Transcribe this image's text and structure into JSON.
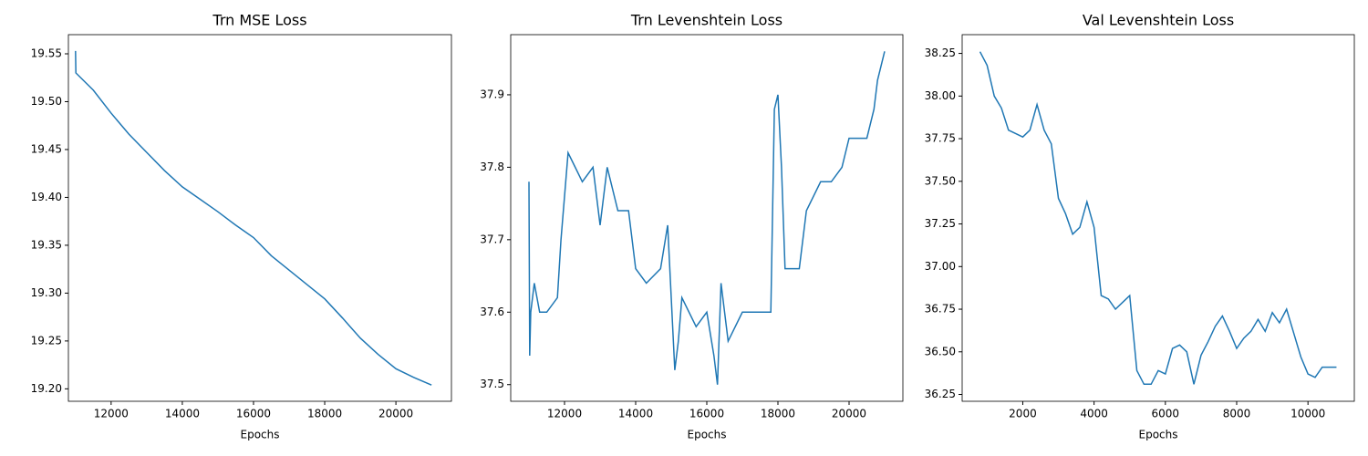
{
  "chart_data": [
    {
      "type": "line",
      "title": "Trn MSE Loss",
      "x_label": "Epochs",
      "color": "#1f77b4",
      "x": [
        11000,
        11010,
        11500,
        12000,
        12500,
        13000,
        13500,
        14000,
        14500,
        15000,
        15500,
        16000,
        16500,
        17000,
        17500,
        18000,
        18500,
        19000,
        19500,
        20000,
        20500,
        21000
      ],
      "values": [
        19.553,
        19.53,
        19.512,
        19.488,
        19.466,
        19.447,
        19.428,
        19.411,
        19.398,
        19.385,
        19.371,
        19.358,
        19.339,
        19.324,
        19.309,
        19.294,
        19.274,
        19.253,
        19.236,
        19.221,
        19.212,
        19.204
      ],
      "xlim": [
        10800,
        21560
      ],
      "ylim": [
        19.187,
        19.57
      ],
      "xticks": [
        12000,
        14000,
        16000,
        18000,
        20000
      ],
      "yticks": [
        {
          "value": 19.2,
          "label": "19.20"
        },
        {
          "value": 19.25,
          "label": "19.25"
        },
        {
          "value": 19.3,
          "label": "19.30"
        },
        {
          "value": 19.35,
          "label": "19.35"
        },
        {
          "value": 19.4,
          "label": "19.40"
        },
        {
          "value": 19.45,
          "label": "19.45"
        },
        {
          "value": 19.5,
          "label": "19.50"
        },
        {
          "value": 19.55,
          "label": "19.55"
        }
      ]
    },
    {
      "type": "line",
      "title": "Trn Levenshtein Loss",
      "x_label": "Epochs",
      "color": "#1f77b4",
      "x": [
        11000,
        11020,
        11050,
        11150,
        11300,
        11500,
        11800,
        11900,
        12000,
        12100,
        12300,
        12500,
        12800,
        13000,
        13200,
        13500,
        13800,
        14000,
        14300,
        14700,
        14900,
        15000,
        15100,
        15200,
        15300,
        15700,
        16000,
        16200,
        16300,
        16400,
        16600,
        17000,
        17500,
        17800,
        17900,
        18000,
        18100,
        18200,
        18600,
        18800,
        19200,
        19500,
        19800,
        20000,
        20500,
        20700,
        20800,
        20900,
        21000
      ],
      "values": [
        37.78,
        37.54,
        37.6,
        37.64,
        37.6,
        37.6,
        37.62,
        37.7,
        37.76,
        37.82,
        37.8,
        37.78,
        37.8,
        37.72,
        37.8,
        37.74,
        37.74,
        37.66,
        37.64,
        37.66,
        37.72,
        37.62,
        37.52,
        37.56,
        37.62,
        37.58,
        37.6,
        37.54,
        37.5,
        37.64,
        37.56,
        37.6,
        37.6,
        37.6,
        37.88,
        37.9,
        37.8,
        37.66,
        37.66,
        37.74,
        37.78,
        37.78,
        37.8,
        37.84,
        37.84,
        37.88,
        37.92,
        37.94,
        37.96
      ],
      "xlim": [
        10487,
        21513
      ],
      "ylim": [
        37.477,
        37.983
      ],
      "xticks": [
        12000,
        14000,
        16000,
        18000,
        20000
      ],
      "yticks": [
        37.5,
        37.6,
        37.7,
        37.8,
        37.9
      ]
    },
    {
      "type": "line",
      "title": "Val Levenshtein Loss",
      "x_label": "Epochs",
      "color": "#1f77b4",
      "x": [
        800,
        1000,
        1200,
        1400,
        1600,
        1800,
        2000,
        2200,
        2400,
        2600,
        2800,
        3000,
        3200,
        3400,
        3600,
        3800,
        4000,
        4200,
        4400,
        4600,
        4800,
        5000,
        5200,
        5400,
        5600,
        5800,
        6000,
        6200,
        6400,
        6600,
        6800,
        7000,
        7200,
        7400,
        7600,
        7800,
        8000,
        8200,
        8400,
        8600,
        8800,
        9000,
        9200,
        9400,
        9600,
        9800,
        10000,
        10200,
        10400,
        10600,
        10800
      ],
      "values": [
        38.26,
        38.18,
        38.0,
        37.93,
        37.8,
        37.78,
        37.76,
        37.8,
        37.95,
        37.8,
        37.72,
        37.4,
        37.31,
        37.19,
        37.23,
        37.38,
        37.23,
        36.83,
        36.81,
        36.75,
        36.79,
        36.83,
        36.39,
        36.31,
        36.31,
        36.39,
        36.37,
        36.52,
        36.54,
        36.5,
        36.31,
        36.48,
        36.56,
        36.65,
        36.71,
        36.62,
        36.52,
        36.58,
        36.62,
        36.69,
        36.62,
        36.73,
        36.67,
        36.75,
        36.61,
        36.47,
        36.37,
        36.35,
        36.41,
        36.41,
        36.41
      ],
      "xlim": [
        300,
        11300
      ],
      "ylim": [
        36.21,
        38.36
      ],
      "xticks": [
        2000,
        4000,
        6000,
        8000,
        10000
      ],
      "yticks": [
        {
          "value": 36.25,
          "label": "36.25"
        },
        {
          "value": 36.5,
          "label": "36.50"
        },
        {
          "value": 36.75,
          "label": "36.75"
        },
        {
          "value": 37.0,
          "label": "37.00"
        },
        {
          "value": 37.25,
          "label": "37.25"
        },
        {
          "value": 37.5,
          "label": "37.50"
        },
        {
          "value": 37.75,
          "label": "37.75"
        },
        {
          "value": 38.0,
          "label": "38.00"
        },
        {
          "value": 38.25,
          "label": "38.25"
        }
      ]
    }
  ]
}
